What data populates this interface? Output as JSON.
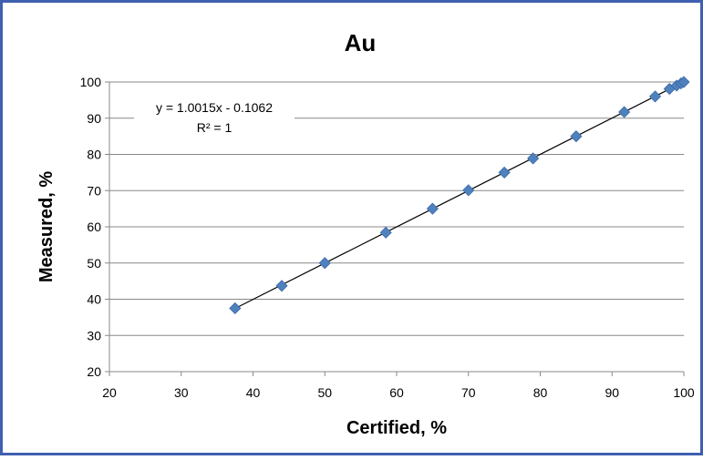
{
  "colors": {
    "border": "#3f5fb0",
    "marker": "#4f81bd",
    "marker_edge": "#3a6aa8",
    "grid": "#888888",
    "trendline": "#000000"
  },
  "chart_data": {
    "type": "scatter",
    "title": "Au",
    "xlabel": "Certified, %",
    "ylabel": "Measured, %",
    "xlim": [
      20,
      100
    ],
    "ylim": [
      20,
      100
    ],
    "xticks": [
      "20",
      "30",
      "40",
      "50",
      "60",
      "70",
      "80",
      "90",
      "100"
    ],
    "yticks": [
      "20",
      "30",
      "40",
      "50",
      "60",
      "70",
      "80",
      "90",
      "100"
    ],
    "grid": "horizontal",
    "series": [
      {
        "marker": "diamond",
        "x": [
          37.5,
          44.0,
          50.0,
          58.5,
          65.0,
          70.0,
          75.0,
          79.0,
          85.0,
          91.7,
          96.0,
          98.0,
          99.0,
          99.6,
          100.0
        ],
        "y": [
          37.5,
          43.7,
          50.0,
          58.4,
          65.0,
          70.1,
          75.0,
          78.9,
          85.0,
          91.7,
          96.0,
          98.1,
          99.0,
          99.6,
          100.0
        ]
      }
    ],
    "trendline": {
      "slope": 1.0015,
      "intercept": -0.1062,
      "x_range": [
        37.5,
        100
      ]
    },
    "annotation": {
      "equation": "y = 1.0015x - 0.1062",
      "r_squared": "R² = 1"
    }
  }
}
